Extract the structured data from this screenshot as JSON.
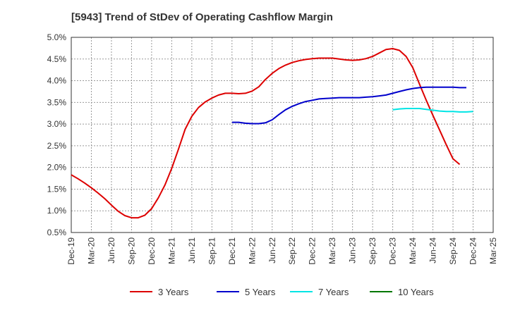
{
  "chart_data": {
    "type": "line",
    "title": "[5943]  Trend of StDev of Operating Cashflow Margin",
    "xlabel": "",
    "ylabel": "",
    "x_ticks": [
      "Dec-19",
      "Mar-20",
      "Jun-20",
      "Sep-20",
      "Dec-20",
      "Mar-21",
      "Jun-21",
      "Sep-21",
      "Dec-21",
      "Mar-22",
      "Jun-22",
      "Sep-22",
      "Dec-22",
      "Mar-23",
      "Jun-23",
      "Sep-23",
      "Dec-23",
      "Mar-24",
      "Jun-24",
      "Sep-24",
      "Dec-24",
      "Mar-25"
    ],
    "y_ticks": [
      "0.5%",
      "1.0%",
      "1.5%",
      "2.0%",
      "2.5%",
      "3.0%",
      "3.5%",
      "4.0%",
      "4.5%",
      "5.0%"
    ],
    "ylim": [
      0.5,
      5.0
    ],
    "grid": true,
    "legend_position": "bottom",
    "series": [
      {
        "name": "3 Years",
        "color": "#dd0000",
        "x_start": "Dec-19",
        "values": [
          1.83,
          1.74,
          1.64,
          1.53,
          1.41,
          1.28,
          1.13,
          0.99,
          0.89,
          0.84,
          0.84,
          0.9,
          1.05,
          1.3,
          1.6,
          1.98,
          2.42,
          2.88,
          3.18,
          3.38,
          3.51,
          3.6,
          3.67,
          3.71,
          3.71,
          3.7,
          3.71,
          3.76,
          3.86,
          4.03,
          4.17,
          4.28,
          4.36,
          4.42,
          4.46,
          4.49,
          4.51,
          4.52,
          4.52,
          4.52,
          4.5,
          4.48,
          4.47,
          4.48,
          4.51,
          4.56,
          4.64,
          4.72,
          4.74,
          4.7,
          4.56,
          4.3,
          3.92,
          3.55,
          3.2,
          2.86,
          2.52,
          2.2,
          2.07
        ]
      },
      {
        "name": "5 Years",
        "color": "#0000cc",
        "x_start": "Dec-21",
        "values": [
          3.04,
          3.04,
          3.02,
          3.01,
          3.01,
          3.03,
          3.1,
          3.22,
          3.33,
          3.41,
          3.47,
          3.52,
          3.55,
          3.58,
          3.59,
          3.6,
          3.61,
          3.61,
          3.61,
          3.61,
          3.62,
          3.63,
          3.65,
          3.67,
          3.71,
          3.75,
          3.79,
          3.82,
          3.84,
          3.85,
          3.85,
          3.85,
          3.85,
          3.85,
          3.84,
          3.84
        ]
      },
      {
        "name": "7 Years",
        "color": "#00e5e5",
        "x_start": "Dec-23",
        "values": [
          3.33,
          3.35,
          3.36,
          3.36,
          3.36,
          3.34,
          3.32,
          3.3,
          3.29,
          3.29,
          3.28,
          3.28,
          3.29
        ]
      },
      {
        "name": "10 Years",
        "color": "#007700",
        "x_start": "Dec-24",
        "values": []
      }
    ]
  }
}
